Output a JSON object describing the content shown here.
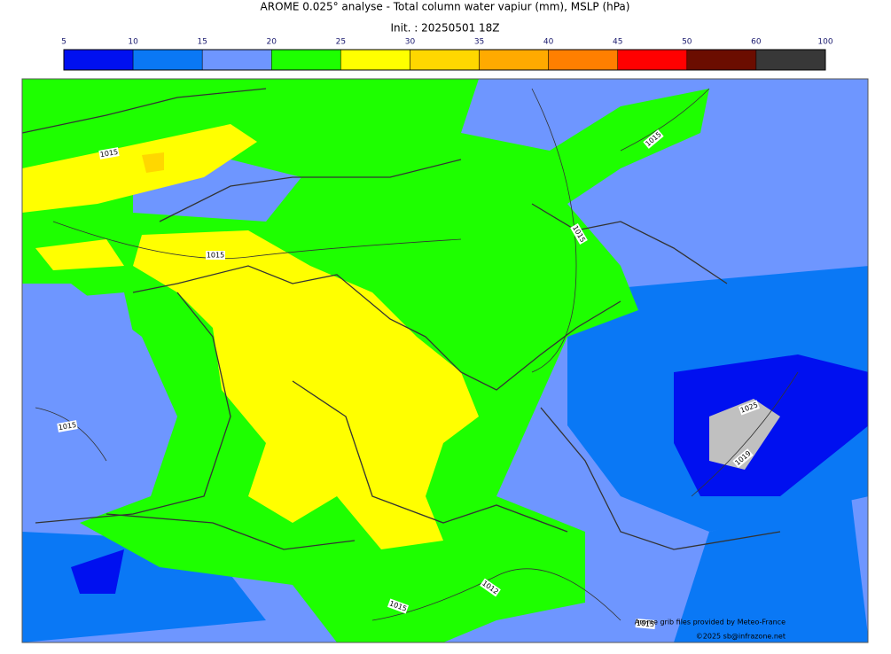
{
  "header": {
    "title": "AROME 0.025° analyse - Total column water vapiur (mm), MSLP (hPa)",
    "subtitle": "Init. : 20250501 18Z"
  },
  "colorbar": {
    "ticks": [
      5,
      10,
      15,
      20,
      25,
      30,
      35,
      40,
      45,
      50,
      60,
      100
    ],
    "colors": [
      "#0010f0",
      "#0a78f5",
      "#6e96ff",
      "#1eff00",
      "#ffff00",
      "#ffd700",
      "#ffaa00",
      "#ff7f00",
      "#ff0000",
      "#6b0d00",
      "#383838"
    ]
  },
  "map": {
    "isobar_labels": [
      "1015",
      "1015",
      "1015",
      "1015",
      "1015",
      "1025",
      "1019",
      "1012",
      "1015",
      "1015"
    ],
    "credits": [
      "Arome grib files provided by Meteo-France",
      "©2025 sb@infrazone.net"
    ]
  }
}
